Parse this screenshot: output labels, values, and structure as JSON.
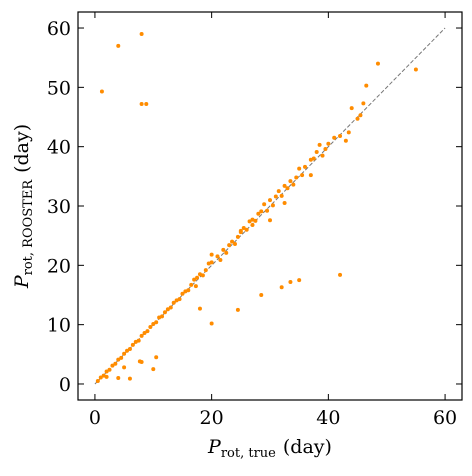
{
  "chart_data": {
    "type": "scatter",
    "x_label": {
      "symbol": "P",
      "subscript": "rot, true",
      "unit": "(day)"
    },
    "y_label": {
      "symbol": "P",
      "subscript": "rot, ROOSTER",
      "unit": "(day)"
    },
    "color": "#ff8c00",
    "reference_line": [
      [
        0,
        0
      ],
      [
        60,
        60
      ]
    ],
    "xlim": [
      -2.9,
      62.9
    ],
    "ylim": [
      -2.7,
      62.7
    ],
    "xticks": [
      0,
      20,
      40,
      60
    ],
    "yticks": [
      0,
      10,
      20,
      30,
      40,
      50,
      60
    ],
    "x": [
      0.5,
      1,
      1.5,
      2,
      2.5,
      3,
      3.5,
      4,
      4.5,
      5,
      5.5,
      6,
      6.5,
      7,
      7.5,
      8,
      8.5,
      9,
      9.5,
      10,
      10.5,
      11,
      11.5,
      12,
      12.5,
      13,
      13.5,
      14,
      14.5,
      15,
      15.5,
      16,
      16.5,
      17,
      17.3,
      17.5,
      18,
      18.5,
      19,
      19.5,
      20,
      20,
      21,
      21.5,
      22,
      22.5,
      23,
      23.5,
      24,
      24.5,
      25,
      25.5,
      26,
      26.5,
      27,
      27.5,
      28,
      28.5,
      29,
      29.5,
      30,
      30.5,
      31,
      31.5,
      32,
      32.5,
      33,
      33.5,
      34,
      34.5,
      35,
      35.5,
      36,
      37,
      37.5,
      38,
      38.5,
      39,
      39.5,
      40,
      41,
      42,
      43,
      43.5,
      44,
      45,
      45.5,
      46,
      37,
      30,
      32.5,
      27,
      25,
      1.2,
      4,
      8,
      8,
      8.8,
      48.5,
      55,
      46.5,
      42,
      35,
      33.5,
      32,
      28.5,
      24.5,
      20,
      18,
      10.5,
      10,
      8,
      7.7,
      5,
      4,
      2,
      6
    ],
    "values": [
      0.5,
      1.1,
      1.4,
      2.1,
      2.4,
      3.1,
      3.4,
      4.1,
      4.4,
      5.1,
      5.6,
      5.9,
      6.6,
      7.1,
      7.3,
      8.1,
      8.6,
      8.9,
      9.6,
      10.1,
      10.4,
      11.2,
      11.4,
      12.1,
      12.6,
      12.9,
      13.7,
      14.1,
      14.3,
      15.2,
      15.6,
      15.8,
      16.7,
      17.6,
      16.5,
      17.9,
      18.5,
      18.3,
      19.2,
      20.3,
      20.5,
      21.8,
      21.5,
      20.9,
      22.6,
      22.1,
      23.4,
      24,
      23.6,
      24.8,
      25.6,
      26.3,
      26,
      27.4,
      26.8,
      27.5,
      28.7,
      29.1,
      30.3,
      29.2,
      31,
      30.1,
      31.6,
      32.5,
      31.7,
      33.4,
      33,
      34.2,
      33.6,
      34.8,
      36.3,
      35.2,
      36.6,
      37.8,
      38,
      39.1,
      40.3,
      38.5,
      39.6,
      40.5,
      41.5,
      41.8,
      41,
      42.4,
      46.5,
      44.7,
      45.3,
      47.3,
      35.2,
      27.6,
      30.5,
      27.7,
      25.8,
      49.3,
      57,
      59,
      47.2,
      47.2,
      54,
      53,
      50.3,
      18.4,
      17.5,
      17.2,
      16.3,
      15,
      12.5,
      10.2,
      12.7,
      4.5,
      2.5,
      3.7,
      3.8,
      2.8,
      1,
      1.2,
      0.9
    ]
  }
}
